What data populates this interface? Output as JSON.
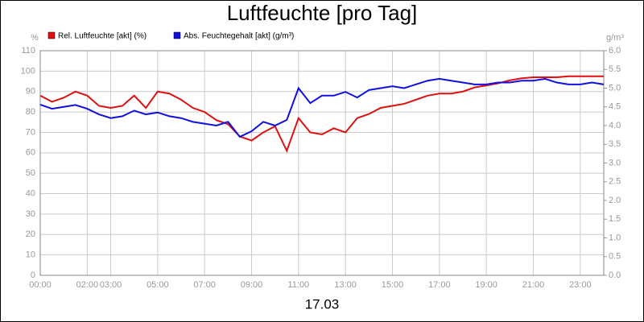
{
  "chart_data": {
    "type": "line",
    "title": "Luftfeuchte [pro Tag]",
    "xlabel": "17.03",
    "ylabel": "%",
    "y2label": "g/m³",
    "x": [
      0,
      0.5,
      1,
      1.5,
      2,
      2.5,
      3,
      3.5,
      4,
      4.5,
      5,
      5.5,
      6,
      6.5,
      7,
      7.5,
      8,
      8.5,
      9,
      9.5,
      10,
      10.5,
      11,
      11.5,
      12,
      12.5,
      13,
      13.5,
      14,
      14.5,
      15,
      15.5,
      16,
      16.5,
      17,
      17.5,
      18,
      18.5,
      19,
      19.5,
      20,
      20.5,
      21,
      21.5,
      22,
      22.5,
      23,
      23.5,
      24
    ],
    "series": [
      {
        "name": "Rel. Luftfeuchte [akt] (%)",
        "color": "#e01010",
        "values": [
          88,
          85,
          87,
          90,
          88,
          83,
          82,
          83,
          88,
          82,
          90,
          89,
          86,
          82,
          80,
          76,
          74,
          68,
          66,
          70,
          73,
          61,
          77,
          70,
          69,
          72,
          70,
          77,
          79,
          82,
          83,
          84,
          86,
          88,
          89,
          89,
          90,
          92,
          93,
          94,
          95.5,
          96.5,
          97,
          97,
          97,
          97.5,
          97.5,
          97.5,
          97.5
        ]
      },
      {
        "name": "Abs. Feuchtegehalt [akt] (g/m³)",
        "color": "#1010e0",
        "axis": "y2",
        "values": [
          4.56,
          4.45,
          4.5,
          4.55,
          4.45,
          4.3,
          4.2,
          4.25,
          4.4,
          4.3,
          4.35,
          4.25,
          4.2,
          4.1,
          4.05,
          4.0,
          4.1,
          3.7,
          3.85,
          4.1,
          4.0,
          4.15,
          5.0,
          4.6,
          4.8,
          4.8,
          4.9,
          4.75,
          4.95,
          5.0,
          5.05,
          5.0,
          5.1,
          5.2,
          5.25,
          5.2,
          5.15,
          5.1,
          5.1,
          5.15,
          5.15,
          5.2,
          5.2,
          5.25,
          5.15,
          5.1,
          5.1,
          5.15,
          5.1
        ]
      }
    ],
    "xlim": [
      0,
      24
    ],
    "xticks": [
      {
        "value": 0,
        "label": "00:00"
      },
      {
        "value": 2,
        "label": "02:00"
      },
      {
        "value": 3,
        "label": "03:00"
      },
      {
        "value": 5,
        "label": "05:00"
      },
      {
        "value": 7,
        "label": "07:00"
      },
      {
        "value": 9,
        "label": "09:00"
      },
      {
        "value": 11,
        "label": "11:00"
      },
      {
        "value": 13,
        "label": "13:00"
      },
      {
        "value": 15,
        "label": "15:00"
      },
      {
        "value": 17,
        "label": "17:00"
      },
      {
        "value": 19,
        "label": "19:00"
      },
      {
        "value": 21,
        "label": "21:00"
      },
      {
        "value": 23,
        "label": "23:00"
      }
    ],
    "ylim": [
      0,
      110
    ],
    "yticks": [
      0,
      10,
      20,
      30,
      40,
      50,
      60,
      70,
      80,
      90,
      100,
      110
    ],
    "y2lim": [
      0,
      6
    ],
    "y2ticks": [
      {
        "value": 0,
        "label": "0.0"
      },
      0.5,
      {
        "value": 1,
        "label": "1.0"
      },
      1.5,
      {
        "value": 2,
        "label": "2.0"
      },
      2.5,
      {
        "value": 3,
        "label": "3.0"
      },
      3.5,
      {
        "value": 4,
        "label": "4.0"
      },
      4.5,
      {
        "value": 5,
        "label": "5.0"
      },
      5.5,
      {
        "value": 6,
        "label": "6.0"
      }
    ],
    "grid": true
  }
}
